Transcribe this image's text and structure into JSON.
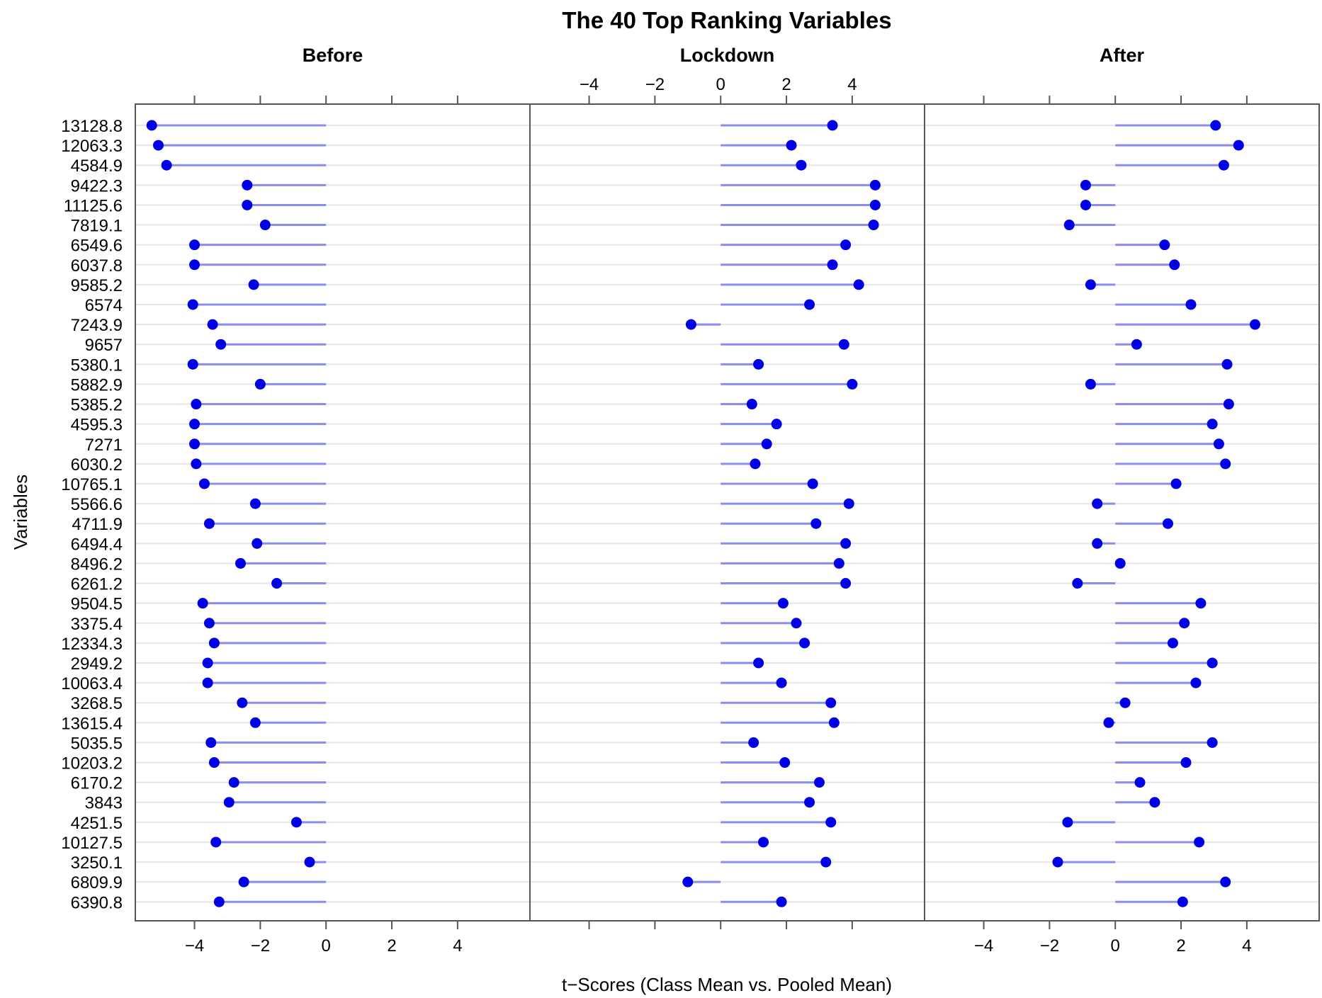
{
  "chart_data": {
    "type": "dot",
    "title": "The 40 Top Ranking Variables",
    "xlabel": "t−Scores (Class Mean vs. Pooled Mean)",
    "ylabel": "Variables",
    "xlim": [
      -5.8,
      6.2
    ],
    "xticks": [
      -4,
      -2,
      0,
      2,
      4
    ],
    "xtick_labels": [
      "−4",
      "−2",
      "0",
      "2",
      "4"
    ],
    "grid": true,
    "categories": [
      "13128.8",
      "12063.3",
      "4584.9",
      "9422.3",
      "11125.6",
      "7819.1",
      "6549.6",
      "6037.8",
      "9585.2",
      "6574",
      "7243.9",
      "9657",
      "5380.1",
      "5882.9",
      "5385.2",
      "4595.3",
      "7271",
      "6030.2",
      "10765.1",
      "5566.6",
      "4711.9",
      "6494.4",
      "8496.2",
      "6261.2",
      "9504.5",
      "3375.4",
      "12334.3",
      "2949.2",
      "10063.4",
      "3268.5",
      "13615.4",
      "5035.5",
      "10203.2",
      "6170.2",
      "3843",
      "4251.5",
      "10127.5",
      "3250.1",
      "6809.9",
      "6390.8"
    ],
    "series": [
      {
        "name": "Before",
        "values": [
          -5.3,
          -5.1,
          -4.85,
          -2.4,
          -2.4,
          -1.85,
          -4.0,
          -4.0,
          -2.2,
          -4.05,
          -3.45,
          -3.2,
          -4.05,
          -2.0,
          -3.95,
          -4.0,
          -4.0,
          -3.95,
          -3.7,
          -2.15,
          -3.55,
          -2.1,
          -2.6,
          -1.5,
          -3.75,
          -3.55,
          -3.4,
          -3.6,
          -3.6,
          -2.55,
          -2.15,
          -3.5,
          -3.4,
          -2.8,
          -2.95,
          -0.9,
          -3.35,
          -0.5,
          -2.5,
          -3.25
        ]
      },
      {
        "name": "Lockdown",
        "values": [
          3.4,
          2.15,
          2.45,
          4.7,
          4.7,
          4.65,
          3.8,
          3.4,
          4.2,
          2.7,
          -0.9,
          3.75,
          1.15,
          4.0,
          0.95,
          1.7,
          1.4,
          1.05,
          2.8,
          3.9,
          2.9,
          3.8,
          3.6,
          3.8,
          1.9,
          2.3,
          2.55,
          1.15,
          1.85,
          3.35,
          3.45,
          1.0,
          1.95,
          3.0,
          2.7,
          3.35,
          1.3,
          3.2,
          -1.0,
          1.85
        ]
      },
      {
        "name": "After",
        "values": [
          3.05,
          3.75,
          3.3,
          -0.9,
          -0.9,
          -1.4,
          1.5,
          1.8,
          -0.75,
          2.3,
          4.25,
          0.65,
          3.4,
          -0.75,
          3.45,
          2.95,
          3.15,
          3.35,
          1.85,
          -0.55,
          1.6,
          -0.55,
          0.15,
          -1.15,
          2.6,
          2.1,
          1.75,
          2.95,
          2.45,
          0.3,
          -0.2,
          2.95,
          2.15,
          0.75,
          1.2,
          -1.45,
          2.55,
          -1.75,
          3.35,
          2.05
        ]
      }
    ]
  },
  "colors": {
    "point": "#0000e6",
    "stem": "#8c8cf0",
    "grid": "#e6e6e6",
    "frame": "#555555"
  }
}
